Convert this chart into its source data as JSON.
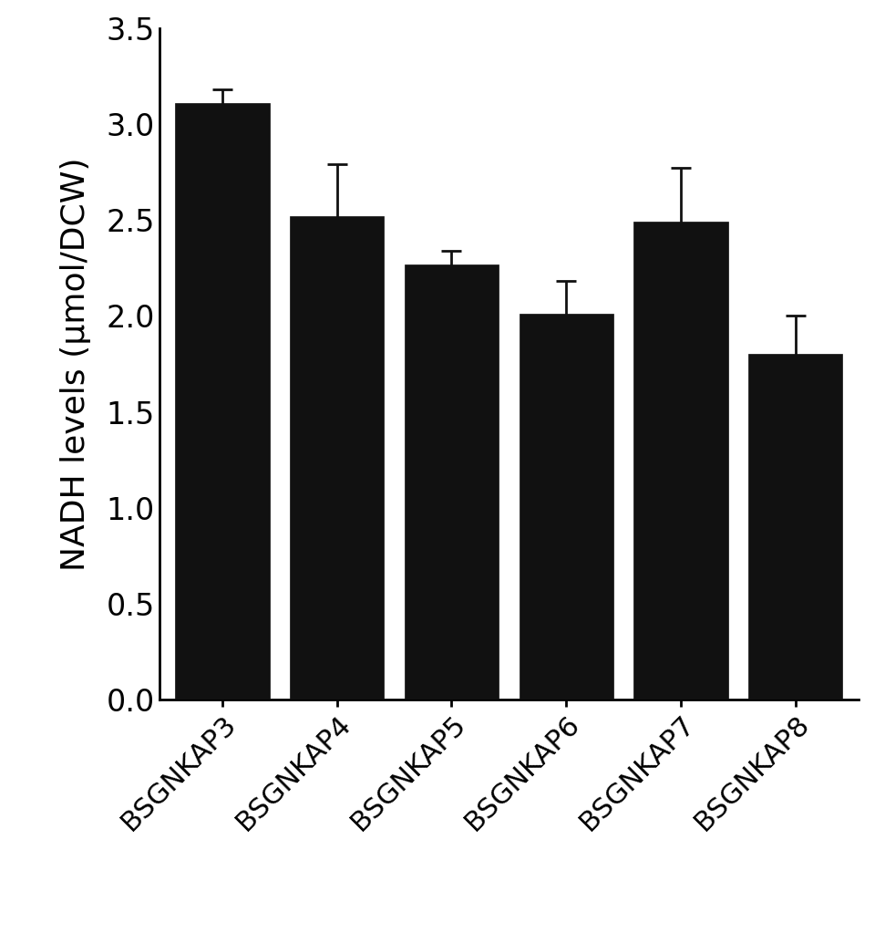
{
  "categories": [
    "BSGNKAP3",
    "BSGNKAP4",
    "BSGNKAP5",
    "BSGNKAP6",
    "BSGNKAP7",
    "BSGNKAP8"
  ],
  "values": [
    3.11,
    2.52,
    2.27,
    2.01,
    2.49,
    1.8
  ],
  "errors": [
    0.07,
    0.27,
    0.07,
    0.17,
    0.28,
    0.2
  ],
  "bar_color": "#111111",
  "bar_edge_color": "#111111",
  "bar_width": 0.82,
  "ylabel": "NADH levels (μmol/DCW)",
  "ylim": [
    0,
    3.5
  ],
  "yticks": [
    0,
    0.5,
    1.0,
    1.5,
    2.0,
    2.5,
    3.0,
    3.5
  ],
  "ylabel_fontsize": 26,
  "tick_fontsize": 24,
  "xtick_fontsize": 22,
  "error_capsize": 8,
  "error_linewidth": 2.0,
  "error_color": "#111111",
  "background_color": "#ffffff",
  "spine_linewidth": 2.0
}
